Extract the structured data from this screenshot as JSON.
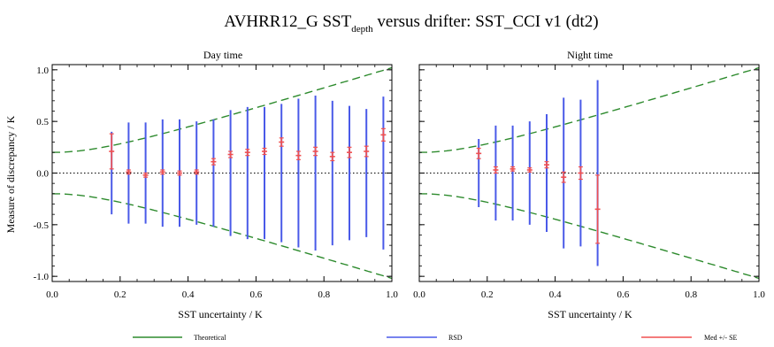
{
  "figure": {
    "title_main": "AVHRR12_G SST",
    "title_sub": "depth",
    "title_rest": " versus drifter: SST_CCI v1 (dt2)"
  },
  "chart_data": [
    {
      "type": "errorbar",
      "title": "Day time",
      "xlabel": "SST uncertainty / K",
      "ylabel": "Measure of discrepancy / K",
      "xlim": [
        0.0,
        1.0
      ],
      "ylim": [
        -1.05,
        1.05
      ],
      "xticks": [
        "0.0",
        "0.2",
        "0.4",
        "0.6",
        "0.8",
        "1.0"
      ],
      "yticks": [
        "-1.0",
        "-0.5",
        "0.0",
        "0.5",
        "1.0"
      ],
      "x": [
        0.175,
        0.225,
        0.275,
        0.325,
        0.375,
        0.425,
        0.475,
        0.525,
        0.575,
        0.625,
        0.675,
        0.725,
        0.775,
        0.825,
        0.875,
        0.925,
        0.975
      ],
      "rsd": [
        0.4,
        0.49,
        0.49,
        0.52,
        0.52,
        0.5,
        0.52,
        0.61,
        0.64,
        0.64,
        0.67,
        0.72,
        0.75,
        0.7,
        0.65,
        0.62,
        0.74
      ],
      "median": [
        0.21,
        0.01,
        -0.02,
        0.01,
        0.0,
        0.01,
        0.11,
        0.18,
        0.2,
        0.21,
        0.3,
        0.17,
        0.21,
        0.16,
        0.2,
        0.21,
        0.37
      ],
      "se": [
        0.17,
        0.02,
        0.02,
        0.02,
        0.02,
        0.02,
        0.03,
        0.03,
        0.03,
        0.03,
        0.04,
        0.04,
        0.04,
        0.04,
        0.05,
        0.05,
        0.06
      ],
      "theoretical_intercept": 0.2,
      "zero_line": true
    },
    {
      "type": "errorbar",
      "title": "Night time",
      "xlabel": "SST uncertainty / K",
      "ylabel": "",
      "xlim": [
        0.0,
        1.0
      ],
      "ylim": [
        -1.05,
        1.05
      ],
      "xticks": [
        "0.0",
        "0.2",
        "0.4",
        "0.6",
        "0.8",
        "1.0"
      ],
      "yticks": [],
      "x": [
        0.175,
        0.225,
        0.275,
        0.325,
        0.375,
        0.425,
        0.475,
        0.525
      ],
      "rsd": [
        0.33,
        0.46,
        0.46,
        0.5,
        0.57,
        0.73,
        0.71,
        0.9
      ],
      "median": [
        0.19,
        0.03,
        0.04,
        0.03,
        0.08,
        -0.04,
        0.0,
        -0.35
      ],
      "se": [
        0.05,
        0.03,
        0.02,
        0.02,
        0.03,
        0.05,
        0.06,
        0.33
      ],
      "theoretical_intercept": 0.2,
      "zero_line": true
    }
  ],
  "legend": [
    {
      "label": "Theoretical",
      "color": "#2e8b2e",
      "style": "dashed"
    },
    {
      "label": "RSD",
      "color": "#4a5ae8",
      "style": "solid"
    },
    {
      "label": "Med +/- SE",
      "color": "#f05050",
      "style": "solid"
    }
  ],
  "colors": {
    "theoretical": "#2e8b2e",
    "rsd": "#4a5ae8",
    "median": "#f05050",
    "axes": "#000000"
  }
}
